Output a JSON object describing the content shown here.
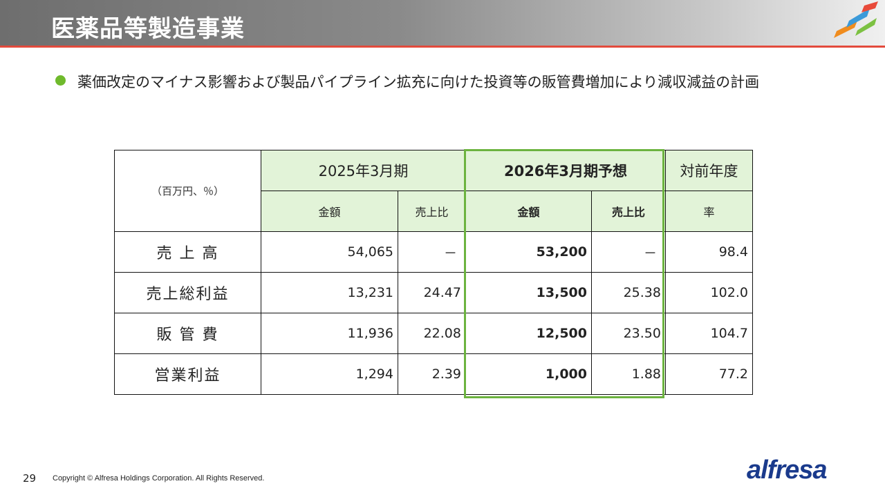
{
  "header": {
    "title": "医薬品等製造事業"
  },
  "bullet": {
    "text": "薬価改定のマイナス影響および製品パイプライン拡充に向けた投資等の販管費増加により減収減益の計画"
  },
  "table": {
    "unit_label": "（百万円、％）",
    "col_fy2025": "2025年3月期",
    "col_fy2026": "2026年3月期予想",
    "col_yoy": "対前年度",
    "sub_amount": "金額",
    "sub_ratio": "売上比",
    "sub_amount_bold": "金額",
    "sub_ratio_bold": "売上比",
    "sub_rate": "率",
    "rows": [
      {
        "label": "売 上 高",
        "amt2025": "54,065",
        "ratio2025": "－",
        "amt2026": "53,200",
        "ratio2026": "－",
        "yoy": "98.4"
      },
      {
        "label": "売上総利益",
        "amt2025": "13,231",
        "ratio2025": "24.47",
        "amt2026": "13,500",
        "ratio2026": "25.38",
        "yoy": "102.0"
      },
      {
        "label": "販 管 費",
        "amt2025": "11,936",
        "ratio2025": "22.08",
        "amt2026": "12,500",
        "ratio2026": "23.50",
        "yoy": "104.7"
      },
      {
        "label": "営業利益",
        "amt2025": "1,294",
        "ratio2025": "2.39",
        "amt2026": "1,000",
        "ratio2026": "1.88",
        "yoy": "77.2"
      }
    ]
  },
  "footer": {
    "page": "29",
    "copyright": "Copyright © Alfresa Holdings Corporation. All Rights Reserved.",
    "logo_text": "alfresa"
  },
  "colors": {
    "accent_green": "#6cb33f",
    "header_red_line": "#e34a3c",
    "logo_blue": "#1a3a8c"
  }
}
